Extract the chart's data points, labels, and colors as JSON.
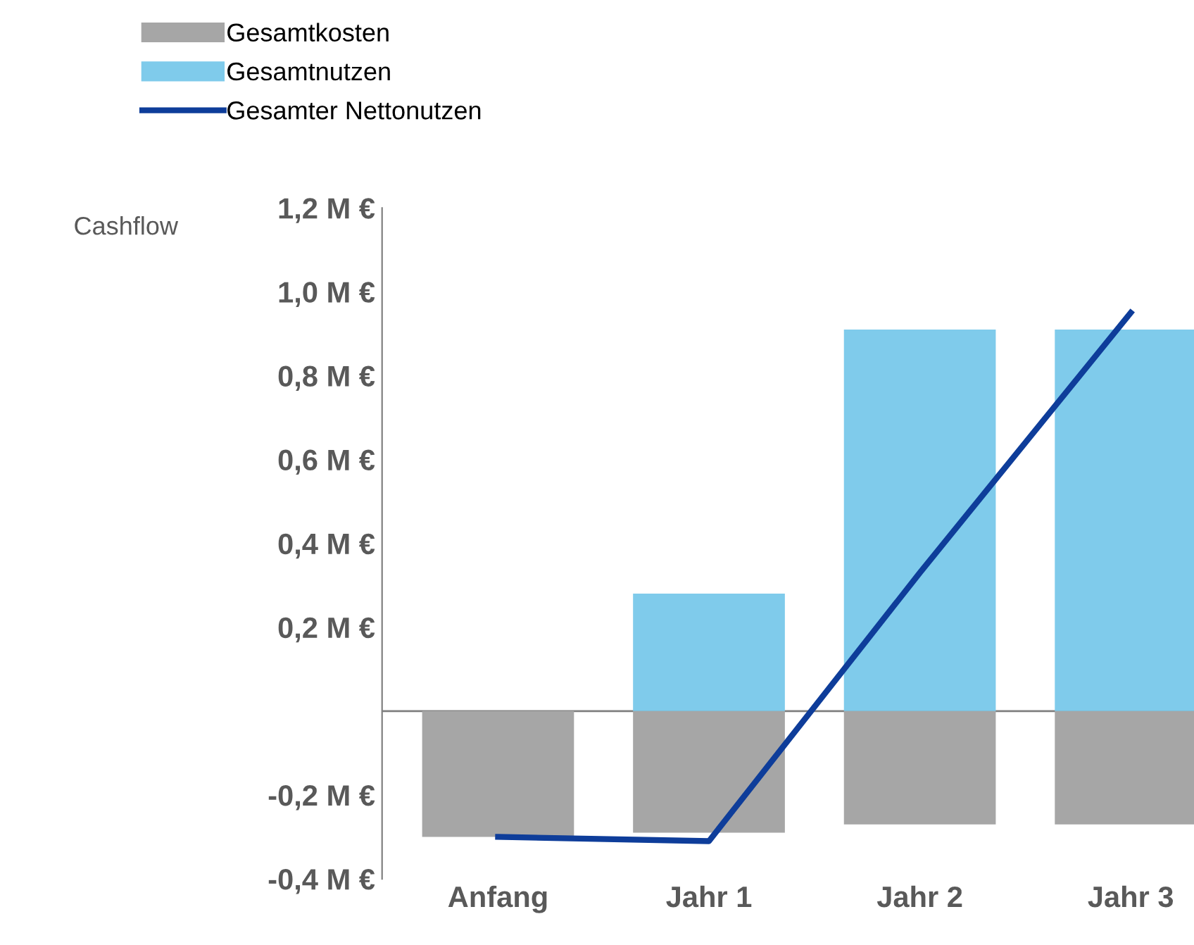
{
  "chart_data": {
    "type": "bar",
    "ylabel": "Cashflow",
    "categories": [
      "Anfang",
      "Jahr 1",
      "Jahr 2",
      "Jahr 3"
    ],
    "series": [
      {
        "name": "Gesamtkosten",
        "color": "#a6a6a6",
        "values": [
          -0.3,
          -0.29,
          -0.27,
          -0.27
        ]
      },
      {
        "name": "Gesamtnutzen",
        "color": "#7fcbeb",
        "values": [
          0,
          0.28,
          0.91,
          0.91
        ]
      },
      {
        "name": "Gesamter Nettonutzen",
        "type": "line",
        "color": "#0e3d9a",
        "values": [
          -0.3,
          -0.31,
          0.33,
          0.95
        ]
      }
    ],
    "ylim": [
      -0.4,
      1.2
    ],
    "yticks": [
      {
        "value": -0.4,
        "label": "-0,4 M €"
      },
      {
        "value": -0.2,
        "label": "-0,2 M €"
      },
      {
        "value": 0.2,
        "label": "0,2 M €"
      },
      {
        "value": 0.4,
        "label": "0,4 M €"
      },
      {
        "value": 0.6,
        "label": "0,6 M €"
      },
      {
        "value": 0.8,
        "label": "0,8 M €"
      },
      {
        "value": 1.0,
        "label": "1,0 M €"
      },
      {
        "value": 1.2,
        "label": "1,2 M €"
      }
    ],
    "ref_lines": [
      {
        "axis": "y",
        "value": 0,
        "color": "#808080"
      }
    ],
    "stacked": true,
    "grid": false,
    "legend": "top left",
    "marker": "none",
    "line_style": "solid"
  }
}
